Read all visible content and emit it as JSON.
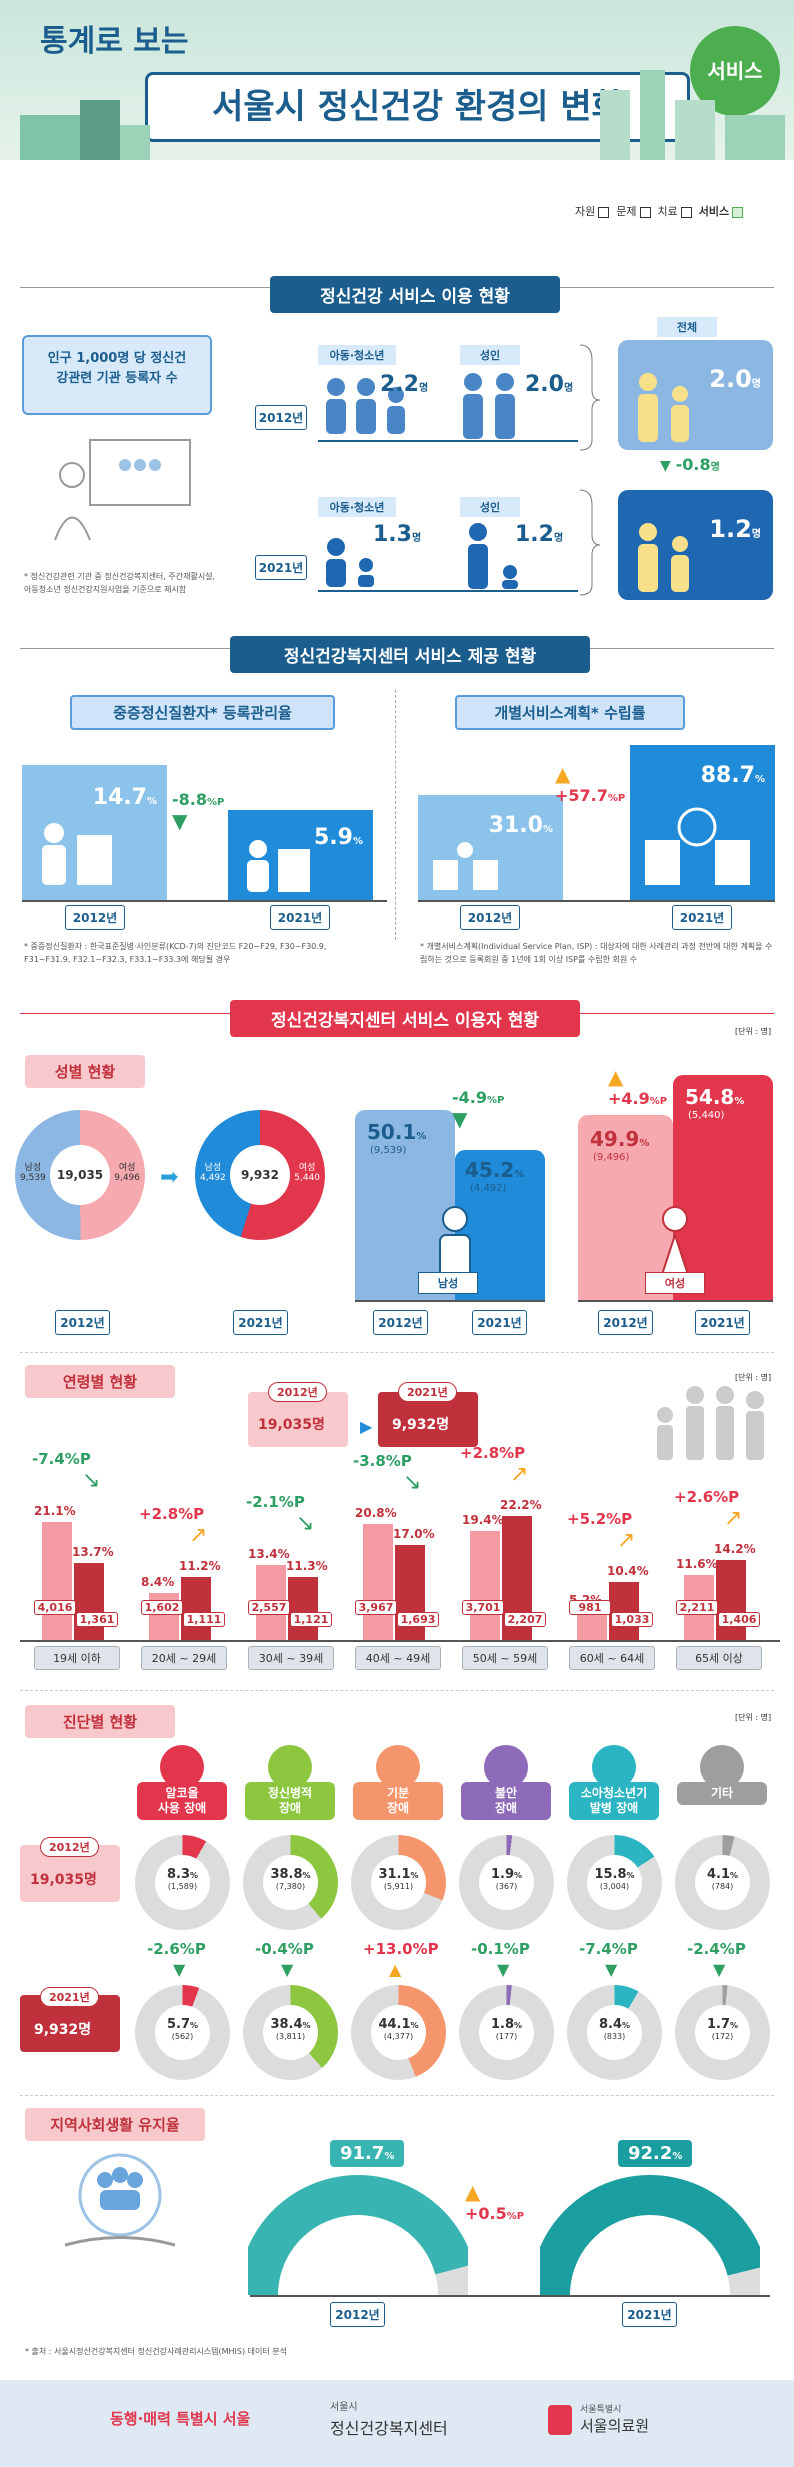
{
  "header": {
    "title_top": "통계로 보는",
    "title_main": "서울시 정신건강 환경의 변화",
    "badge": "서비스",
    "tabs": [
      "자원",
      "문제",
      "치료",
      "서비스"
    ]
  },
  "section1": {
    "title": "정신건강 서비스 이용 현황",
    "box_label": "인구 1,000명 당 정신건강관련 기관 등록자 수",
    "note": "* 정신건강관련 기관 중 정신건강복지센터, 주간재활시설, 아동청소년 정신건강지원사업을 기준으로 제시함",
    "total_label": "전체",
    "youth_label": "아동·청소년",
    "adult_label": "성인",
    "year_2012": "2012년",
    "year_2021": "2021년",
    "y2012_youth": "2.2",
    "y2012_adult": "2.0",
    "y2012_total": "2.0",
    "y2021_youth": "1.3",
    "y2021_adult": "1.2",
    "y2021_total": "1.2",
    "unit": "명",
    "change": "-0.8"
  },
  "section2": {
    "title": "정신건강복지센터 서비스 제공 현황",
    "left_label": "중증정신질환자* 등록관리율",
    "right_label": "개별서비스계획* 수립률",
    "left_2012": "14.7",
    "left_2021": "5.9",
    "left_change": "-8.8",
    "right_2012": "31.0",
    "right_2021": "88.7",
    "right_change": "+57.7",
    "pct": "%",
    "pctp": "%P",
    "year_2012": "2012년",
    "year_2021": "2021년",
    "note_left": "* 중증정신질환자 : 한국표준질병·사인분류(KCD-7)의 진단코드 F20~F29, F30~F30.9, F31~F31.9, F32.1~F32.3, F33.1~F33.3에 해당될 경우",
    "note_right": "* 개별서비스계획(Individual Service Plan, ISP) : 대상자에 대한 사례관리 과정 전반에 대한 계획을 수립하는 것으로 등록회원 중 1년에 1회 이상 ISP를 수립한 회원 수"
  },
  "section3": {
    "title": "정신건강복지센터 서비스 이용자 현황",
    "unit_note": "[단위 : 명]",
    "gender_title": "성별 현황",
    "donut_2012_total": "19,035",
    "donut_2012_male": "남성",
    "donut_2012_male_v": "9,539",
    "donut_2012_female": "여성",
    "donut_2012_female_v": "9,496",
    "donut_2021_total": "9,932",
    "donut_2021_male": "남성",
    "donut_2021_male_v": "4,492",
    "donut_2021_female": "여성",
    "donut_2021_female_v": "5,440",
    "year_2012": "2012년",
    "year_2021": "2021년",
    "male_2012_pct": "50.1",
    "male_2012_n": "(9,539)",
    "male_2021_pct": "45.2",
    "male_2021_n": "(4,492)",
    "male_change": "-4.9",
    "male_label": "남성",
    "female_2012_pct": "49.9",
    "female_2012_n": "(9,496)",
    "female_2021_pct": "54.8",
    "female_2021_n": "(5,440)",
    "female_change": "+4.9",
    "female_label": "여성"
  },
  "age": {
    "title": "연령별 현황",
    "unit_note": "[단위 : 명]",
    "legend_2012": "2012년",
    "legend_2012_v": "19,035명",
    "legend_2021": "2021년",
    "legend_2021_v": "9,932명",
    "groups": [
      {
        "cat": "19세 이하",
        "p12": "21.1",
        "p21": "13.7",
        "n12": "4,016",
        "n21": "1,361",
        "chg": "-7.4",
        "up": false
      },
      {
        "cat": "20세 ~ 29세",
        "p12": "8.4",
        "p21": "11.2",
        "n12": "1,602",
        "n21": "1,111",
        "chg": "+2.8",
        "up": true
      },
      {
        "cat": "30세 ~ 39세",
        "p12": "13.4",
        "p21": "11.3",
        "n12": "2,557",
        "n21": "1,121",
        "chg": "-2.1",
        "up": false
      },
      {
        "cat": "40세 ~ 49세",
        "p12": "20.8",
        "p21": "17.0",
        "n12": "3,967",
        "n21": "1,693",
        "chg": "-3.8",
        "up": false
      },
      {
        "cat": "50세 ~ 59세",
        "p12": "19.4",
        "p21": "22.2",
        "n12": "3,701",
        "n21": "2,207",
        "chg": "+2.8",
        "up": true
      },
      {
        "cat": "60세 ~ 64세",
        "p12": "5.2",
        "p21": "10.4",
        "n12": "981",
        "n21": "1,033",
        "chg": "+5.2",
        "up": true
      },
      {
        "cat": "65세 이상",
        "p12": "11.6",
        "p21": "14.2",
        "n12": "2,211",
        "n21": "1,406",
        "chg": "+2.6",
        "up": true
      }
    ]
  },
  "diag": {
    "title": "진단별 현황",
    "unit_note": "[단위 : 명]",
    "y2012": "2012년",
    "y2012_v": "19,035명",
    "y2021": "2021년",
    "y2021_v": "9,932명",
    "items": [
      {
        "l1": "알코올",
        "l2": "사용 장애",
        "color": "#e2364c",
        "p12": "8.3",
        "n12": "(1,589)",
        "p21": "5.7",
        "n21": "(562)",
        "chg": "-2.6",
        "up": false,
        "f12": 0.083,
        "f21": 0.057
      },
      {
        "l1": "정신병적",
        "l2": "장애",
        "color": "#8dc63f",
        "p12": "38.8",
        "n12": "(7,380)",
        "p21": "38.4",
        "n21": "(3,811)",
        "chg": "-0.4",
        "up": false,
        "f12": 0.388,
        "f21": 0.384
      },
      {
        "l1": "기분",
        "l2": "장애",
        "color": "#f5956b",
        "p12": "31.1",
        "n12": "(5,911)",
        "p21": "44.1",
        "n21": "(4,377)",
        "chg": "+13.0",
        "up": true,
        "f12": 0.311,
        "f21": 0.441
      },
      {
        "l1": "불안",
        "l2": "장애",
        "color": "#8e6bb8",
        "p12": "1.9",
        "n12": "(367)",
        "p21": "1.8",
        "n21": "(177)",
        "chg": "-0.1",
        "up": false,
        "f12": 0.019,
        "f21": 0.018
      },
      {
        "l1": "소아청소년기",
        "l2": "발병 장애",
        "color": "#2bb5c3",
        "p12": "15.8",
        "n12": "(3,004)",
        "p21": "8.4",
        "n21": "(833)",
        "chg": "-7.4",
        "up": false,
        "f12": 0.158,
        "f21": 0.084
      },
      {
        "l1": "기타",
        "l2": "",
        "color": "#9e9e9e",
        "p12": "4.1",
        "n12": "(784)",
        "p21": "1.7",
        "n21": "(172)",
        "chg": "-2.4",
        "up": false,
        "f12": 0.041,
        "f21": 0.017
      }
    ]
  },
  "community": {
    "title": "지역사회생활 유지율",
    "p2012": "91.7",
    "p2021": "92.2",
    "chg": "+0.5",
    "y2012": "2012년",
    "y2021": "2021년"
  },
  "footer": {
    "source": "* 출처 : 서울시정신건강복지센터 정신건강사례관리시스템(MHIS) 데이터 분석",
    "logo1": "동행·매력 특별시 서울",
    "logo2_top": "서울시",
    "logo2_main": "정신건강복지센터",
    "logo3_top": "서울특별시",
    "logo3_main": "서울의료원"
  }
}
